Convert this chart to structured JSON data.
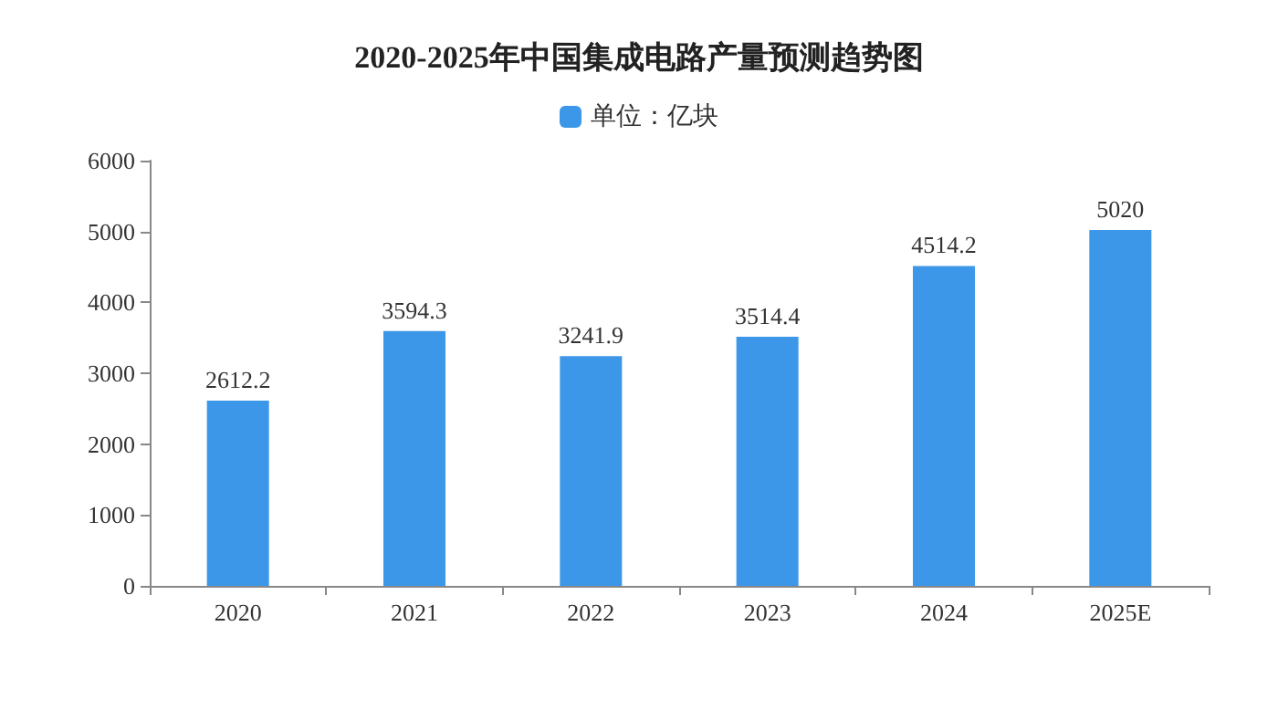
{
  "chart_data": {
    "type": "bar",
    "title": "2020-2025年中国集成电路产量预测趋势图",
    "categories": [
      "2020",
      "2021",
      "2022",
      "2023",
      "2024",
      "2025E"
    ],
    "series": [
      {
        "name": "单位：亿块",
        "color": "#3d97e8",
        "values": [
          2612.2,
          3594.3,
          3241.9,
          3514.4,
          4514.2,
          5020
        ]
      }
    ],
    "ylim": [
      0,
      6000
    ],
    "yticks": [
      0,
      1000,
      2000,
      3000,
      4000,
      5000,
      6000
    ],
    "grid": false,
    "legend": "top",
    "data_labels": true
  }
}
